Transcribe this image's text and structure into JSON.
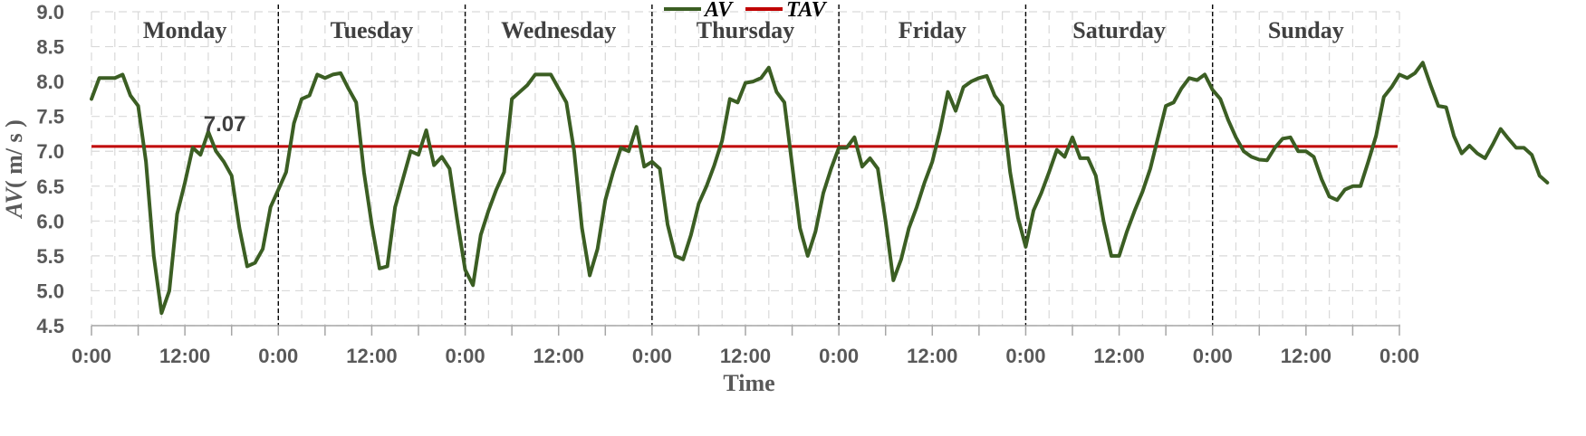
{
  "chart_data": {
    "type": "line",
    "xlabel": "Time",
    "ylabel_italic": "AV",
    "ylabel_rest": "( m/ s )",
    "ylim": [
      4.5,
      9.0
    ],
    "yticks": [
      "4.5",
      "5.0",
      "5.5",
      "6.0",
      "6.5",
      "7.0",
      "7.5",
      "8.0",
      "8.5",
      "9.0"
    ],
    "xtick_labels": [
      "0:00",
      "12:00",
      "0:00",
      "12:00",
      "0:00",
      "12:00",
      "0:00",
      "12:00",
      "0:00",
      "12:00",
      "0:00",
      "12:00",
      "0:00",
      "12:00",
      "0:00"
    ],
    "hours_per_point": 1,
    "days": [
      "Monday",
      "Tuesday",
      "Wednesday",
      "Thursday",
      "Friday",
      "Saturday",
      "Sunday"
    ],
    "grid": true,
    "legend_placement": "top-center",
    "annotation": "7.07",
    "colors": {
      "AV": "#3b5e23",
      "TAV": "#c00000"
    },
    "series": [
      {
        "name": "AV",
        "values": [
          7.75,
          8.05,
          8.05,
          8.05,
          8.1,
          7.8,
          7.65,
          6.85,
          5.5,
          4.68,
          5.0,
          6.1,
          6.55,
          7.05,
          6.95,
          7.28,
          7.0,
          6.85,
          6.65,
          5.9,
          5.35,
          5.4,
          5.6,
          6.2,
          6.45,
          6.7,
          7.4,
          7.75,
          7.8,
          8.1,
          8.05,
          8.1,
          8.12,
          7.9,
          7.7,
          6.7,
          5.95,
          5.32,
          5.35,
          6.2,
          6.6,
          7.0,
          6.95,
          7.3,
          6.8,
          6.92,
          6.75,
          6.0,
          5.3,
          5.08,
          5.8,
          6.15,
          6.45,
          6.7,
          7.75,
          7.85,
          7.95,
          8.1,
          8.1,
          8.1,
          7.9,
          7.7,
          7.0,
          5.9,
          5.22,
          5.6,
          6.3,
          6.7,
          7.05,
          7.0,
          7.35,
          6.78,
          6.85,
          6.75,
          5.95,
          5.5,
          5.45,
          5.8,
          6.25,
          6.5,
          6.8,
          7.15,
          7.75,
          7.7,
          7.98,
          8.0,
          8.05,
          8.2,
          7.85,
          7.7,
          6.8,
          5.9,
          5.5,
          5.85,
          6.4,
          6.75,
          7.05,
          7.05,
          7.2,
          6.78,
          6.9,
          6.75,
          6.0,
          5.15,
          5.45,
          5.9,
          6.2,
          6.55,
          6.85,
          7.3,
          7.85,
          7.58,
          7.92,
          8.0,
          8.05,
          8.08,
          7.8,
          7.65,
          6.7,
          6.05,
          5.63,
          6.15,
          6.4,
          6.7,
          7.02,
          6.92,
          7.2,
          6.9,
          6.9,
          6.65,
          6.0,
          5.5,
          5.5,
          5.85,
          6.15,
          6.42,
          6.75,
          7.2,
          7.65,
          7.7,
          7.9,
          8.05,
          8.02,
          8.1,
          7.88,
          7.75,
          7.45,
          7.2,
          7.0,
          6.92,
          6.88,
          6.87,
          7.05,
          7.18,
          7.2,
          7.0,
          7.0,
          6.92,
          6.6,
          6.35,
          6.3,
          6.45,
          6.5,
          6.5,
          6.85,
          7.22,
          7.78,
          7.92,
          8.1,
          8.05,
          8.12,
          8.27,
          7.95,
          7.65,
          7.63,
          7.22,
          6.97,
          7.08,
          6.97,
          6.9,
          7.1,
          7.32,
          7.18,
          7.05,
          7.05,
          6.95,
          6.65,
          6.55
        ]
      },
      {
        "name": "TAV",
        "constant": 7.07
      }
    ]
  }
}
